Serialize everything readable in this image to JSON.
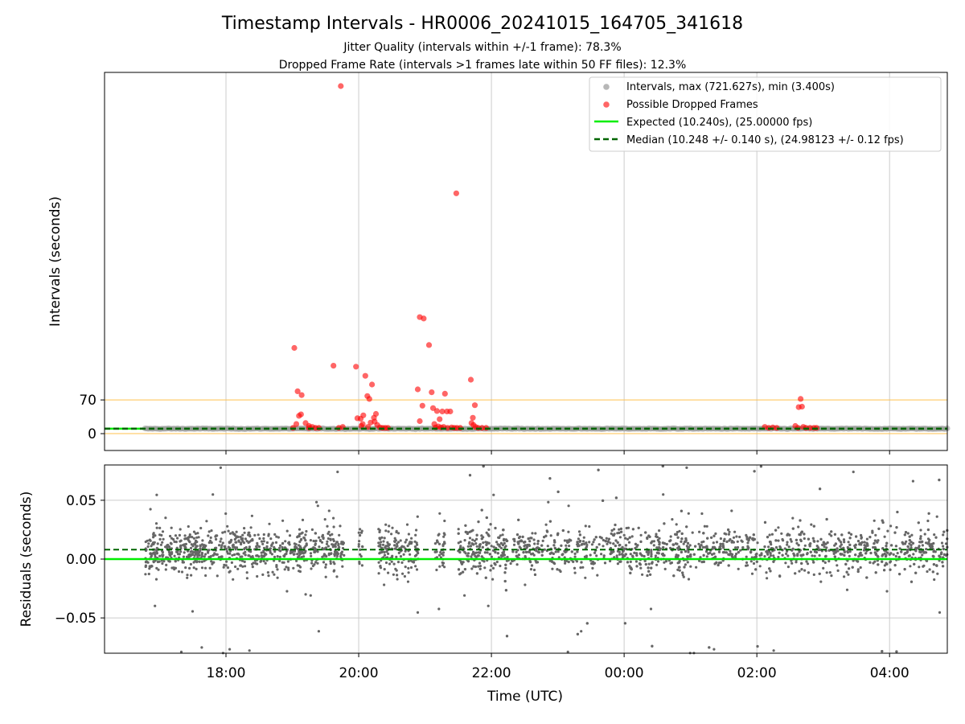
{
  "figure": {
    "title": "Timestamp Intervals - HR0006_20241015_164705_341618",
    "subtitle_1": "Jitter Quality (intervals within +/-1 frame): 78.3%",
    "subtitle_2": "Dropped Frame Rate (intervals >1 frames late within 50 FF files): 12.3%"
  },
  "colors": {
    "intervals": "#999999",
    "dropped": "#ff0000",
    "expected": "#00ee00",
    "median": "#006400",
    "threshold": "#ffc04d",
    "residuals": "#666666",
    "grid": "#cccccc"
  },
  "chart_data": [
    {
      "type": "scatter",
      "panel": "top",
      "xlabel": "",
      "ylabel": "Intervals (seconds)",
      "x_ticks": [
        "18:00",
        "20:00",
        "22:00",
        "00:00",
        "02:00",
        "04:00"
      ],
      "x_tick_hours": [
        18,
        20,
        22,
        24,
        26,
        28
      ],
      "x_range_hours": [
        16.17,
        28.87
      ],
      "y_ticks": [
        0,
        70
      ],
      "ylim": [
        -35,
        750
      ],
      "grid": "x",
      "legend_position": "top-right",
      "legend": [
        "Intervals, max (721.627s), min (3.400s)",
        "Possible Dropped Frames",
        "Expected (10.240s), (25.00000 fps)",
        "Median (10.248 +/- 0.140 s), (24.98123 +/- 0.12 fps)"
      ],
      "reference_lines": {
        "expected": 10.24,
        "median": 10.248,
        "threshold_upper": 70,
        "threshold_lower": 0
      },
      "series": [
        {
          "name": "Intervals, max (721.627s), min (3.400s)",
          "x_range_hours": [
            16.78,
            28.87
          ],
          "typical_value": 10.24
        },
        {
          "name": "Possible Dropped Frames",
          "points": [
            [
              19.03,
              178
            ],
            [
              19.08,
              88
            ],
            [
              19.14,
              80
            ],
            [
              19.1,
              37
            ],
            [
              19.13,
              40
            ],
            [
              19.06,
              20
            ],
            [
              19.2,
              22
            ],
            [
              19.01,
              12
            ],
            [
              19.25,
              16
            ],
            [
              19.3,
              14
            ],
            [
              19.35,
              12
            ],
            [
              19.4,
              12
            ],
            [
              19.25,
              12
            ],
            [
              19.62,
              141
            ],
            [
              19.73,
              721.6
            ],
            [
              19.7,
              12
            ],
            [
              19.76,
              14
            ],
            [
              19.96,
              139
            ],
            [
              19.98,
              32
            ],
            [
              20.03,
              31
            ],
            [
              20.07,
              38
            ],
            [
              20.1,
              120
            ],
            [
              20.13,
              78
            ],
            [
              20.16,
              72
            ],
            [
              20.2,
              102
            ],
            [
              20.23,
              33
            ],
            [
              20.26,
              41
            ],
            [
              20.18,
              23
            ],
            [
              20.04,
              16
            ],
            [
              20.06,
              20
            ],
            [
              20.14,
              14
            ],
            [
              20.24,
              25
            ],
            [
              20.28,
              18
            ],
            [
              20.32,
              13
            ],
            [
              20.36,
              12
            ],
            [
              20.4,
              12
            ],
            [
              20.44,
              12
            ],
            [
              20.89,
              92
            ],
            [
              20.92,
              242
            ],
            [
              20.98,
              239
            ],
            [
              20.96,
              58
            ],
            [
              20.92,
              26
            ],
            [
              21.06,
              184
            ],
            [
              21.1,
              86
            ],
            [
              21.12,
              53
            ],
            [
              21.18,
              47
            ],
            [
              21.14,
              20
            ],
            [
              21.22,
              30
            ],
            [
              21.26,
              46
            ],
            [
              21.3,
              83
            ],
            [
              21.33,
              46
            ],
            [
              21.38,
              46
            ],
            [
              21.16,
              13
            ],
            [
              21.2,
              15
            ],
            [
              21.24,
              13
            ],
            [
              21.28,
              14
            ],
            [
              21.34,
              12
            ],
            [
              21.4,
              13
            ],
            [
              21.44,
              12
            ],
            [
              21.48,
              12
            ],
            [
              21.53,
              12
            ],
            [
              21.47,
              499
            ],
            [
              21.69,
              112
            ],
            [
              21.72,
              33
            ],
            [
              21.75,
              59
            ],
            [
              21.7,
              22
            ],
            [
              21.73,
              18
            ],
            [
              21.76,
              14
            ],
            [
              21.8,
              12
            ],
            [
              21.86,
              12
            ],
            [
              21.92,
              12
            ],
            [
              26.12,
              14
            ],
            [
              26.18,
              12
            ],
            [
              26.24,
              13
            ],
            [
              26.3,
              12
            ],
            [
              26.58,
              16
            ],
            [
              26.63,
              55
            ],
            [
              26.66,
              72
            ],
            [
              26.68,
              56
            ],
            [
              26.62,
              12
            ],
            [
              26.7,
              14
            ],
            [
              26.74,
              12
            ],
            [
              26.8,
              12
            ],
            [
              26.86,
              12
            ],
            [
              26.9,
              12
            ]
          ]
        }
      ]
    },
    {
      "type": "scatter",
      "panel": "bottom",
      "xlabel": "Time (UTC)",
      "ylabel": "Residuals (seconds)",
      "x_ticks": [
        "18:00",
        "20:00",
        "22:00",
        "00:00",
        "02:00",
        "04:00"
      ],
      "x_tick_hours": [
        18,
        20,
        22,
        24,
        26,
        28
      ],
      "x_range_hours": [
        16.17,
        28.87
      ],
      "y_ticks": [
        "0.05",
        "0.00",
        "−0.05"
      ],
      "y_tick_values": [
        0.05,
        0.0,
        -0.05
      ],
      "ylim": [
        -0.08,
        0.08
      ],
      "grid": "both",
      "reference_lines": {
        "expected": 0.0,
        "median": 0.008
      },
      "series": [
        {
          "name": "Residuals",
          "segments_hours": [
            [
              16.78,
              19.22
            ],
            [
              19.27,
              19.78
            ],
            [
              20.0,
              20.06
            ],
            [
              20.3,
              20.9
            ],
            [
              21.15,
              21.3
            ],
            [
              21.5,
              28.87
            ]
          ],
          "typical_spread": 0.025
        }
      ]
    }
  ]
}
